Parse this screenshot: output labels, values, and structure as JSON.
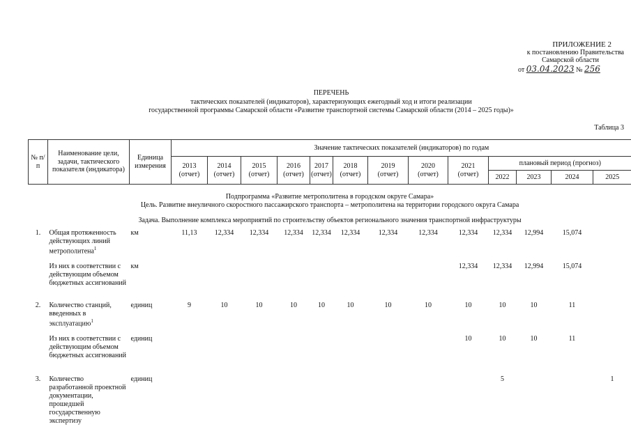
{
  "appendix": {
    "title": "ПРИЛОЖЕНИЕ 2",
    "line1": "к постановлению Правительства",
    "line2": "Самарской области",
    "from": "от",
    "date": "03.04.2023",
    "number_sign": "№",
    "number": "256"
  },
  "header": {
    "title": "ПЕРЕЧЕНЬ",
    "subtitle1": "тактических показателей (индикаторов), характеризующих ежегодный ход и итоги реализации",
    "subtitle2": "государственной программы Самарской области «Развитие транспортной системы Самарской области (2014 – 2025 годы)»",
    "table_label": "Таблица 3"
  },
  "table": {
    "col_num": "№ п/п",
    "col_name": "Наименование цели, задачи, тактического показателя (индикатора)",
    "col_unit": "Единица измерения",
    "col_values": "Значение тактических показателей (индикаторов) по годам",
    "planned": "плановый период (прогноз)",
    "report_years": [
      {
        "year": "2013",
        "note": "(отчет)"
      },
      {
        "year": "2014",
        "note": "(отчет)"
      },
      {
        "year": "2015",
        "note": "(отчет)"
      },
      {
        "year": "2016",
        "note": "(отчет)"
      },
      {
        "year": "2017",
        "note": "(отчет)"
      },
      {
        "year": "2018",
        "note": "(отчет)"
      },
      {
        "year": "2019",
        "note": "(отчет)"
      },
      {
        "year": "2020",
        "note": "(отчет)"
      },
      {
        "year": "2021",
        "note": "(отчет)"
      }
    ],
    "plan_years": [
      "2022",
      "2023",
      "2024",
      "2025"
    ],
    "subprogram": "Подпрограмма «Развитие метрополитена в городском округе Самара»",
    "goal": "Цель. Развитие внеуличного скоростного пассажирского транспорта – метрополитена на территории городского округа Самара",
    "task": "Задача. Выполнение комплекса мероприятий по строительству объектов регионального значения транспортной инфраструктуры",
    "rows": [
      {
        "num": "1.",
        "name": "Общая протяженность действующих линий метрополитена",
        "note": "1",
        "unit": "км",
        "values": [
          "11,13",
          "12,334",
          "12,334",
          "12,334",
          "12,334",
          "12,334",
          "12,334",
          "12,334",
          "12,334",
          "12,334",
          "12,994",
          "15,074",
          null
        ]
      },
      {
        "num": null,
        "name": "Из них в соответствии с действующим объемом бюджетных ассигнований",
        "note": null,
        "unit": "км",
        "values": [
          null,
          null,
          null,
          null,
          null,
          null,
          null,
          null,
          "12,334",
          "12,334",
          "12,994",
          "15,074",
          null
        ]
      },
      {
        "num": "2.",
        "name": "Количество станций, введенных в эксплуатацию",
        "note": "1",
        "unit": "единиц",
        "values": [
          "9",
          "10",
          "10",
          "10",
          "10",
          "10",
          "10",
          "10",
          "10",
          "10",
          "10",
          "11",
          null
        ]
      },
      {
        "num": null,
        "name": "Из них в соответствии с действующим объемом бюджетных ассигнований",
        "note": null,
        "unit": "единиц",
        "values": [
          null,
          null,
          null,
          null,
          null,
          null,
          null,
          null,
          "10",
          "10",
          "10",
          "11",
          null
        ]
      },
      {
        "num": "3.",
        "name": "Количество разработанной проектной документации, прошедшей государственную экспертизу",
        "note": null,
        "unit": "единиц",
        "values": [
          null,
          null,
          null,
          null,
          null,
          null,
          null,
          null,
          null,
          "5",
          null,
          null,
          "1"
        ]
      }
    ]
  }
}
